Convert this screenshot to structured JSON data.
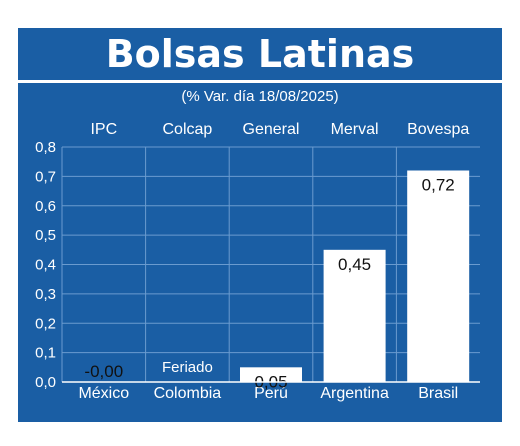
{
  "title": "Bolsas Latinas",
  "subtitle": "(% Var. día 18/08/2025)",
  "colors": {
    "panel": "#1a5ea4",
    "bar": "#ffffff",
    "grid": "#6a9bcf",
    "text": "#ffffff"
  },
  "chart_data": {
    "type": "bar",
    "index_names": [
      "IPC",
      "Colcap",
      "General",
      "Merval",
      "Bovespa"
    ],
    "categories": [
      "México",
      "Colombia",
      "Perú",
      "Argentina",
      "Brasil"
    ],
    "values": [
      0.0,
      null,
      0.05,
      0.45,
      0.72
    ],
    "data_labels": [
      "-0,00",
      "Feriado",
      "0,05",
      "0,45",
      "0,72"
    ],
    "yticks": [
      "0,0",
      "0,1",
      "0,2",
      "0,3",
      "0,4",
      "0,5",
      "0,6",
      "0,7",
      "0,8"
    ],
    "ylim": [
      0,
      0.8
    ],
    "grid": true
  }
}
